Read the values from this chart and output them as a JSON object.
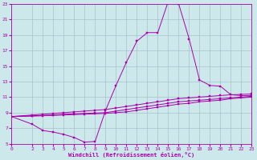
{
  "bg_color": "#cce8ea",
  "grid_color": "#a0b8c8",
  "line_color": "#aa00aa",
  "xlabel": "Windchill (Refroidissement éolien,°C)",
  "xlim": [
    0,
    23
  ],
  "ylim": [
    5,
    23
  ],
  "xticks": [
    0,
    2,
    3,
    4,
    5,
    6,
    7,
    8,
    9,
    10,
    11,
    12,
    13,
    14,
    15,
    16,
    17,
    18,
    19,
    20,
    21,
    22,
    23
  ],
  "yticks": [
    5,
    7,
    9,
    11,
    13,
    15,
    17,
    19,
    21,
    23
  ],
  "curves": [
    {
      "x": [
        0,
        2,
        3,
        4,
        5,
        6,
        7,
        8,
        9,
        10,
        11,
        12,
        13,
        14,
        15,
        16,
        17,
        18,
        19,
        20,
        21,
        22,
        23
      ],
      "y": [
        8.5,
        7.5,
        6.7,
        6.5,
        6.2,
        5.8,
        5.2,
        5.3,
        9.3,
        12.5,
        15.5,
        18.2,
        19.3,
        19.3,
        23.3,
        23.0,
        18.5,
        13.2,
        12.5,
        12.4,
        11.3,
        11.2,
        11.2
      ]
    },
    {
      "x": [
        0,
        2,
        3,
        4,
        5,
        6,
        7,
        8,
        9,
        10,
        11,
        12,
        13,
        14,
        15,
        16,
        17,
        18,
        19,
        20,
        21,
        22,
        23
      ],
      "y": [
        8.5,
        8.7,
        8.8,
        8.9,
        9.0,
        9.1,
        9.2,
        9.3,
        9.4,
        9.6,
        9.8,
        10.0,
        10.2,
        10.4,
        10.6,
        10.8,
        10.9,
        11.0,
        11.1,
        11.2,
        11.3,
        11.35,
        11.4
      ]
    },
    {
      "x": [
        0,
        2,
        3,
        4,
        5,
        6,
        7,
        8,
        9,
        10,
        11,
        12,
        13,
        14,
        15,
        16,
        17,
        18,
        19,
        20,
        21,
        22,
        23
      ],
      "y": [
        8.5,
        8.6,
        8.65,
        8.7,
        8.8,
        8.85,
        8.9,
        8.95,
        9.0,
        9.2,
        9.4,
        9.6,
        9.8,
        10.0,
        10.2,
        10.4,
        10.5,
        10.6,
        10.7,
        10.8,
        10.9,
        11.0,
        11.1
      ]
    },
    {
      "x": [
        0,
        2,
        3,
        4,
        5,
        6,
        7,
        8,
        9,
        10,
        11,
        12,
        13,
        14,
        15,
        16,
        17,
        18,
        19,
        20,
        21,
        22,
        23
      ],
      "y": [
        8.5,
        8.55,
        8.6,
        8.65,
        8.7,
        8.75,
        8.8,
        8.85,
        8.9,
        9.0,
        9.1,
        9.3,
        9.5,
        9.7,
        9.9,
        10.1,
        10.2,
        10.4,
        10.5,
        10.6,
        10.8,
        10.9,
        11.0
      ]
    }
  ]
}
